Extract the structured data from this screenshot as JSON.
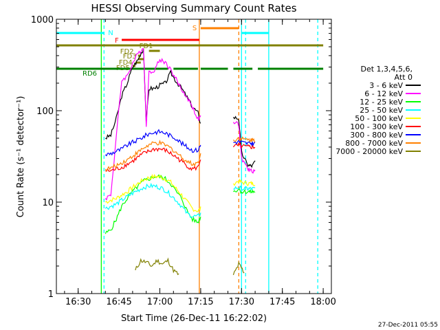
{
  "chart_data": {
    "type": "line",
    "title": "HESSI Observing Summary Count Rates",
    "xlabel": "Start Time (26-Dec-11 16:22:02)",
    "ylabel": "Count Rate (s⁻¹ detector⁻¹)",
    "x_range_min": [
      982,
      1083
    ],
    "y_range": [
      1,
      1000
    ],
    "y_scale": "log",
    "x_ticks": [
      "16:30",
      "16:45",
      "17:00",
      "17:15",
      "17:30",
      "17:45",
      "18:00"
    ],
    "y_ticks": [
      "1",
      "10",
      "100",
      "1000"
    ],
    "grid": false,
    "timestamp": "27-Dec-2011 05:55",
    "legend": {
      "title_lines": [
        "Det 1,3,4,5,6,",
        "Att 0"
      ],
      "placement": "right"
    },
    "series": [
      {
        "name": "3 - 6 keV",
        "color": "#000000",
        "x": [
          1000,
          1002,
          1004,
          1006,
          1008,
          1010,
          1012,
          1014,
          1015,
          1016,
          1018,
          1020,
          1022,
          1024,
          1026,
          1028,
          1030,
          1032,
          1034,
          1035,
          1046,
          1047,
          1049,
          1050,
          1052,
          1053,
          1054,
          1055
        ],
        "y": [
          50,
          54,
          82,
          145,
          200,
          300,
          360,
          480,
          75,
          175,
          175,
          190,
          200,
          260,
          210,
          175,
          140,
          110,
          95,
          72,
          null,
          85,
          82,
          35,
          26,
          25,
          25,
          28
        ]
      },
      {
        "name": "6 - 12 keV",
        "color": "#ff00ff",
        "x": [
          1000,
          1002,
          1004,
          1006,
          1008,
          1010,
          1012,
          1014,
          1015,
          1016,
          1018,
          1020,
          1022,
          1024,
          1026,
          1028,
          1030,
          1032,
          1034,
          1035,
          1046,
          1047,
          1049,
          1050,
          1052,
          1053,
          1054,
          1055
        ],
        "y": [
          11,
          12,
          52,
          215,
          240,
          330,
          420,
          500,
          68,
          260,
          280,
          360,
          340,
          280,
          220,
          170,
          140,
          110,
          80,
          85,
          null,
          75,
          70,
          30,
          24,
          22,
          22,
          22
        ]
      },
      {
        "name": "12 - 25 keV",
        "color": "#00ff00",
        "x": [
          1000,
          1002,
          1004,
          1006,
          1008,
          1010,
          1012,
          1014,
          1016,
          1018,
          1020,
          1022,
          1024,
          1026,
          1028,
          1030,
          1032,
          1034,
          1035,
          1046,
          1047,
          1049,
          1050,
          1052,
          1053,
          1054,
          1055
        ],
        "y": [
          4.5,
          5,
          6.5,
          9,
          11,
          13,
          15,
          17,
          18,
          19,
          19,
          18,
          16,
          13,
          11,
          8,
          6.5,
          6,
          7,
          null,
          13,
          14,
          13,
          13,
          13,
          13,
          13
        ]
      },
      {
        "name": "25 - 50 keV",
        "color": "#00ffff",
        "x": [
          1000,
          1002,
          1004,
          1006,
          1008,
          1010,
          1012,
          1014,
          1016,
          1018,
          1020,
          1022,
          1024,
          1026,
          1028,
          1030,
          1032,
          1034,
          1035,
          1046,
          1047,
          1049,
          1050,
          1052,
          1053,
          1054,
          1055
        ],
        "y": [
          8.5,
          9,
          9.5,
          10.5,
          11.5,
          12.5,
          13.5,
          14.5,
          15,
          15,
          14.5,
          13.5,
          12,
          10.5,
          9,
          7.5,
          7,
          7,
          7.5,
          null,
          14,
          14.5,
          14,
          14,
          14,
          14,
          14
        ]
      },
      {
        "name": "50 - 100 keV",
        "color": "#ffff00",
        "x": [
          1000,
          1002,
          1004,
          1006,
          1008,
          1010,
          1012,
          1014,
          1016,
          1018,
          1020,
          1022,
          1024,
          1026,
          1028,
          1030,
          1032,
          1034,
          1035,
          1046,
          1047,
          1049,
          1050,
          1052,
          1053,
          1054,
          1055
        ],
        "y": [
          10,
          10.5,
          11,
          12,
          13,
          14.5,
          16,
          17.5,
          18.5,
          19,
          19,
          18,
          16.5,
          14,
          12,
          10,
          8.5,
          8,
          8.5,
          null,
          16,
          17,
          16.5,
          16,
          16,
          16,
          16
        ]
      },
      {
        "name": "100 - 300 keV",
        "color": "#ff0000",
        "x": [
          1000,
          1002,
          1004,
          1006,
          1008,
          1010,
          1012,
          1014,
          1016,
          1018,
          1020,
          1022,
          1024,
          1026,
          1028,
          1030,
          1032,
          1034,
          1035,
          1046,
          1047,
          1049,
          1050,
          1052,
          1053,
          1054,
          1055
        ],
        "y": [
          22,
          22,
          23,
          24,
          26,
          28,
          31,
          34,
          36,
          38,
          38,
          37,
          34,
          31,
          28,
          25,
          23,
          24,
          30,
          null,
          40,
          42,
          41,
          40,
          40,
          40,
          40
        ]
      },
      {
        "name": "300 - 800 keV",
        "color": "#0000ff",
        "x": [
          1000,
          1002,
          1004,
          1006,
          1008,
          1010,
          1012,
          1014,
          1016,
          1018,
          1020,
          1022,
          1024,
          1026,
          1028,
          1030,
          1032,
          1034,
          1035,
          1046,
          1047,
          1049,
          1050,
          1052,
          1053,
          1054,
          1055
        ],
        "y": [
          33,
          34,
          36,
          38,
          42,
          45,
          48,
          52,
          56,
          58,
          59,
          57,
          53,
          50,
          44,
          40,
          37,
          37,
          42,
          null,
          45,
          46,
          45,
          44,
          44,
          44,
          44
        ]
      },
      {
        "name": "800 - 7000 keV",
        "color": "#ff8000",
        "x": [
          1000,
          1002,
          1004,
          1006,
          1008,
          1010,
          1012,
          1014,
          1016,
          1018,
          1020,
          1022,
          1024,
          1026,
          1028,
          1030,
          1032,
          1034,
          1035,
          1046,
          1047,
          1049,
          1050,
          1052,
          1053,
          1054,
          1055
        ],
        "y": [
          23,
          23.5,
          25,
          27,
          29,
          32,
          35,
          39,
          42,
          44,
          44,
          42,
          39,
          35,
          31,
          28,
          26,
          27,
          33,
          null,
          48,
          50,
          49,
          48,
          48,
          48,
          48
        ]
      },
      {
        "name": "7000 - 20000 keV",
        "color": "#808000",
        "x": [
          1011,
          1013,
          1015,
          1017,
          1019,
          1021,
          1023,
          1025,
          1027,
          1046,
          1047,
          1049,
          1050,
          1051
        ],
        "y": [
          1.8,
          2.3,
          2.2,
          2.0,
          2.3,
          2.1,
          2.3,
          1.8,
          1.6,
          null,
          1.6,
          2.1,
          1.9,
          1.7
        ]
      }
    ],
    "state_flags": [
      {
        "label": "N",
        "color": "#00ffff",
        "segments": [
          [
            982,
            999.5
          ],
          [
            1050,
            1060
          ]
        ]
      },
      {
        "label": "F",
        "color": "#ff0000",
        "segments": [
          [
            1006,
            1034.5
          ]
        ]
      },
      {
        "label": "S",
        "color": "#ff8000",
        "segments": [
          [
            1035,
            1049
          ]
        ]
      },
      {
        "label": "FD1",
        "color": "#808000",
        "segments": [
          [
            1016,
            1020
          ]
        ]
      },
      {
        "label": "FD2",
        "color": "#808000",
        "segments": [
          [
            1012,
            1013
          ]
        ]
      },
      {
        "label": "FD3",
        "color": "#808000",
        "segments": [
          [
            1012,
            1014
          ]
        ]
      },
      {
        "label": "FD4",
        "color": "#808000",
        "segments": [
          [
            1011,
            1013
          ]
        ]
      },
      {
        "label": "FD5",
        "color": "#808000",
        "segments": [
          [
            1010,
            1011
          ]
        ]
      },
      {
        "label": "RD6",
        "color": "#008000",
        "segments": [
          [
            982,
            1018
          ],
          [
            1018,
            1023
          ],
          [
            1025,
            1034
          ],
          [
            1035,
            1045
          ],
          [
            1047,
            1054
          ],
          [
            1056,
            1080
          ]
        ]
      },
      {
        "label": "",
        "color": "#808000",
        "segments": [
          [
            982,
            1080
          ]
        ]
      }
    ],
    "vertical_lines": [
      {
        "x": 999.5,
        "color": "#00ffff",
        "style": "dashed"
      },
      {
        "x": 998.5,
        "color": "#00ff00",
        "style": "solid"
      },
      {
        "x": 1034.5,
        "color": "#ff8000",
        "style": "solid"
      },
      {
        "x": 1049,
        "color": "#ff8000",
        "style": "dashed"
      },
      {
        "x": 1050,
        "color": "#00ffff",
        "style": "solid"
      },
      {
        "x": 1051.5,
        "color": "#00ffff",
        "style": "dashed"
      },
      {
        "x": 1078,
        "color": "#00ffff",
        "style": "dashed"
      },
      {
        "x": 1060,
        "color": "#00ffff",
        "style": "solid"
      }
    ]
  }
}
